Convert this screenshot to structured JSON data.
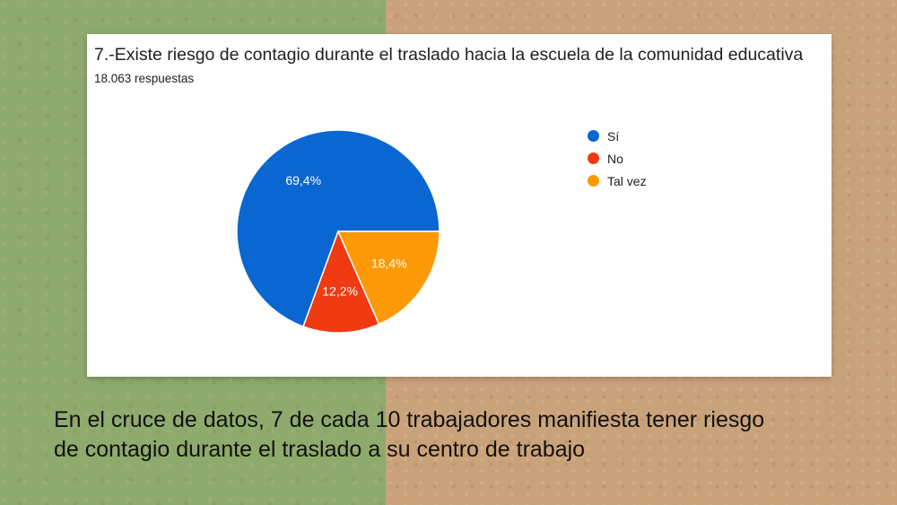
{
  "card": {
    "title": "7.-Existe riesgo de contagio durante el traslado hacia la escuela de la comunidad educativa",
    "subtitle": "18.063 respuestas"
  },
  "chart_data": {
    "type": "pie",
    "title": "7.-Existe riesgo de contagio durante el traslado hacia la escuela de la comunidad educativa",
    "subtitle": "18.063 respuestas",
    "legend_position": "right",
    "slices": [
      {
        "label": "Sí",
        "value": 69.4,
        "display": "69,4%",
        "color": "#0a66d1"
      },
      {
        "label": "No",
        "value": 12.2,
        "display": "12,2%",
        "color": "#f03a12"
      },
      {
        "label": "Tal vez",
        "value": 18.4,
        "display": "18,4%",
        "color": "#fb9a06"
      }
    ]
  },
  "caption": {
    "line1": "En el cruce de datos, 7 de cada 10 trabajadores manifiesta tener riesgo",
    "line2": "de contagio durante el traslado a su centro de trabajo"
  }
}
